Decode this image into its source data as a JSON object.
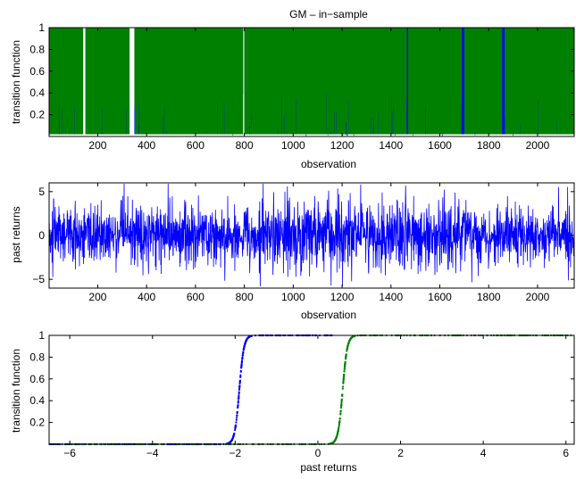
{
  "figure": {
    "title": "GM – in−sample"
  },
  "colors": {
    "series1": "#0000ff",
    "series2": "#008000",
    "axis": "#000000",
    "background": "#ffffff"
  },
  "chart_data": [
    {
      "type": "area",
      "title": "GM – in−sample",
      "xlabel": "observation",
      "ylabel": "transition function",
      "xlim": [
        1,
        2150
      ],
      "ylim": [
        0,
        1
      ],
      "xticks": [
        200,
        400,
        600,
        800,
        1000,
        1200,
        1400,
        1600,
        1800,
        2000
      ],
      "yticks": [
        0.2,
        0.4,
        0.6,
        0.8,
        1
      ],
      "grid": false,
      "series": [
        {
          "color": "#0000ff",
          "description_values": "transition function of series 1 per observation, mostly near 1 with drops"
        },
        {
          "color": "#008000",
          "description_values": "transition function of series 2 per observation, mostly near 1 with drops"
        }
      ],
      "visible_gaps": [
        {
          "x_range": [
            140,
            150
          ]
        },
        {
          "x_range": [
            330,
            350
          ]
        },
        {
          "x_range": [
            795,
            800
          ]
        }
      ],
      "blue_dominant_ranges": [
        [
          1690,
          1700
        ],
        [
          1855,
          1865
        ],
        [
          1465,
          1470
        ]
      ]
    },
    {
      "type": "line",
      "xlabel": "observation",
      "ylabel": "past returns",
      "xlim": [
        1,
        2150
      ],
      "ylim": [
        -6,
        6
      ],
      "xticks": [
        200,
        400,
        600,
        800,
        1000,
        1200,
        1400,
        1600,
        1800,
        2000
      ],
      "yticks": [
        -5,
        0,
        5
      ],
      "grid": false,
      "series": [
        {
          "color": "#0000ff",
          "n": 2150,
          "typical_range": [
            -4,
            4
          ],
          "extreme_range": [
            -6,
            6
          ]
        }
      ]
    },
    {
      "type": "scatter",
      "xlabel": "past returns",
      "ylabel": "transition function",
      "xlim": [
        -6.5,
        6.2
      ],
      "ylim": [
        0,
        1
      ],
      "xticks": [
        -6,
        -4,
        -2,
        0,
        2,
        4,
        6
      ],
      "yticks": [
        0.2,
        0.4,
        0.6,
        0.8,
        1
      ],
      "grid": false,
      "series": [
        {
          "color": "#0000ff",
          "shape": "logistic",
          "center": -1.9,
          "steepness": 18,
          "x_range": [
            -6.5,
            0.4
          ]
        },
        {
          "color": "#008000",
          "shape": "logistic",
          "center": 0.6,
          "steepness": 18,
          "x_range": [
            -6.5,
            6.2
          ]
        }
      ]
    }
  ]
}
